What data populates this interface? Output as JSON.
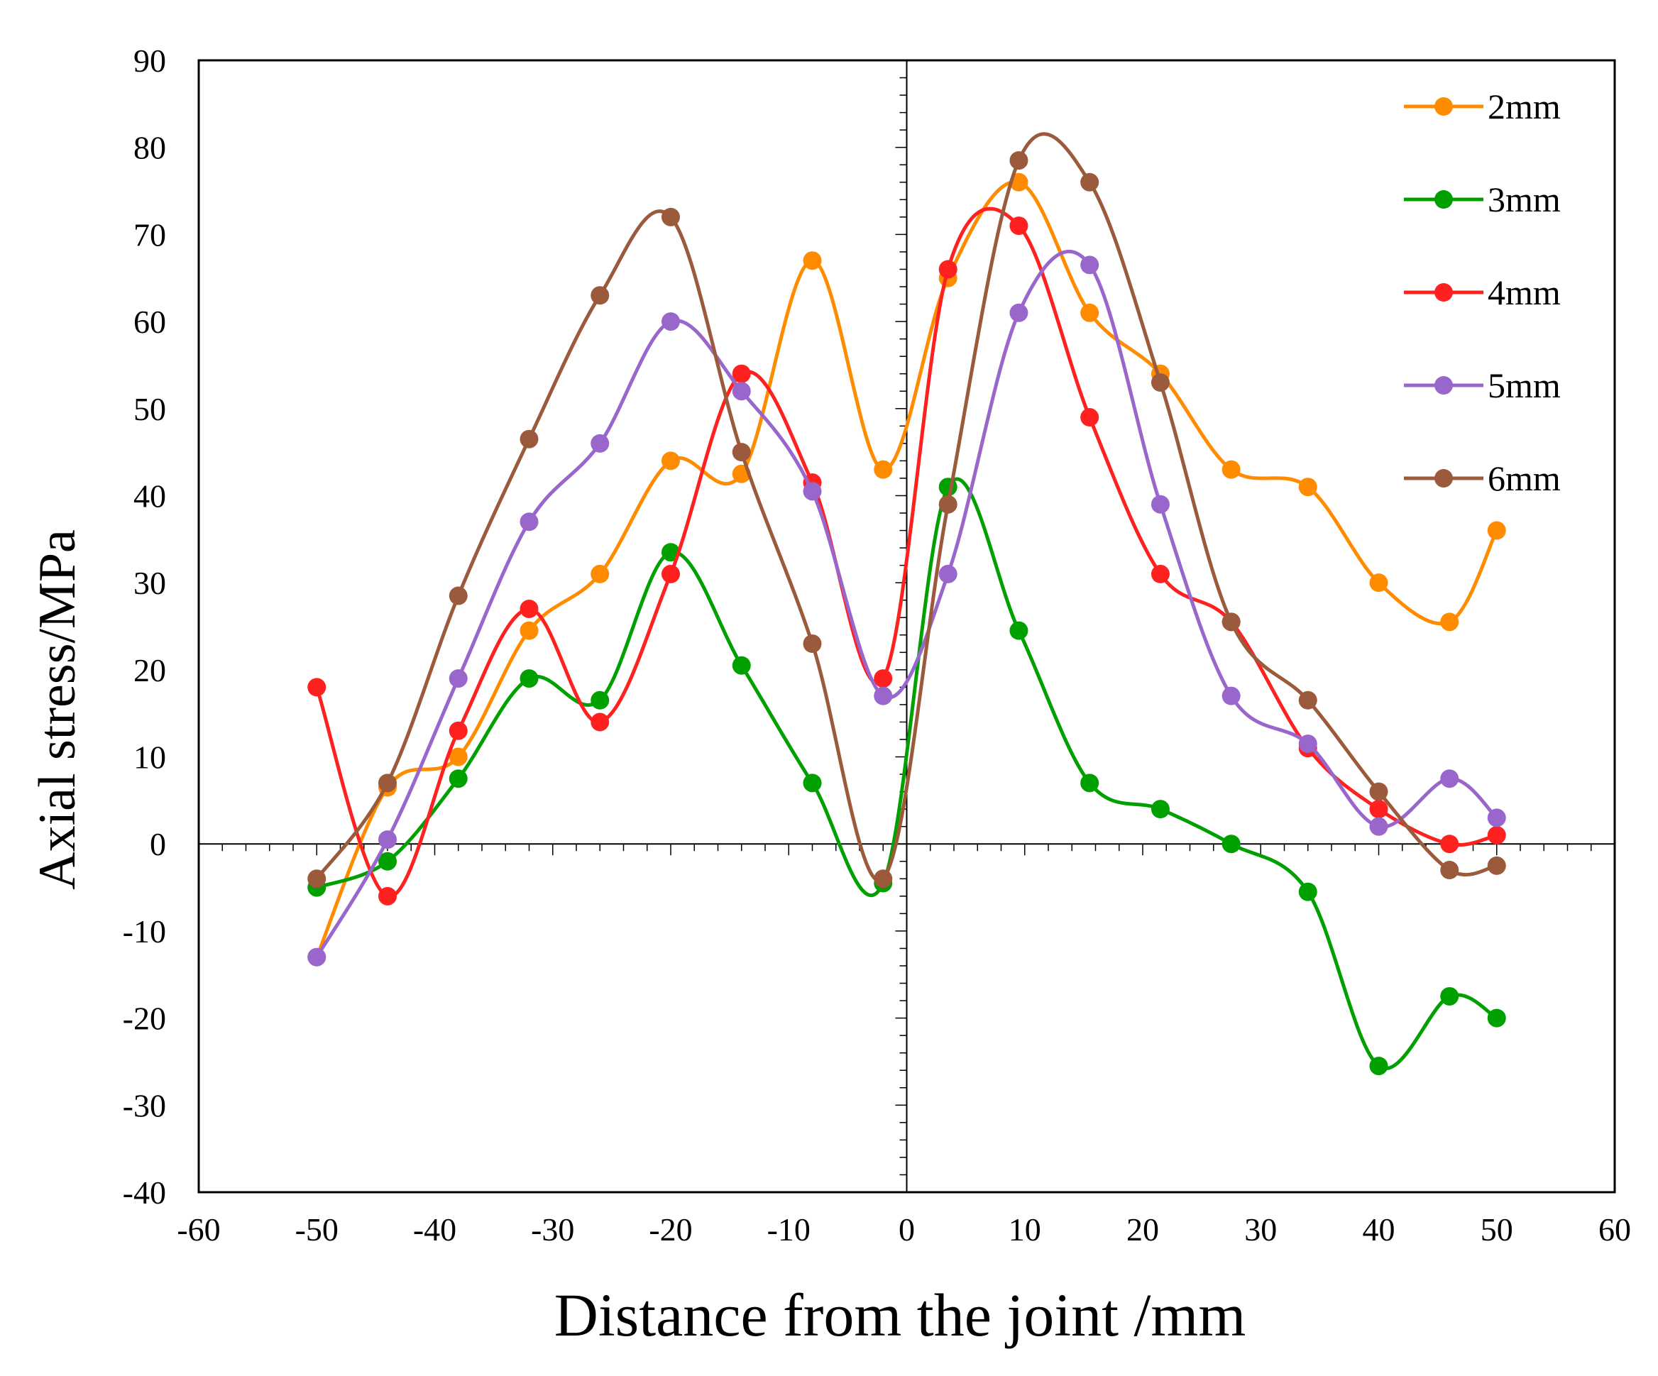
{
  "chart_data": {
    "type": "line",
    "title": "",
    "xlabel": "Distance from the joint /mm",
    "ylabel": "Axial stress/MPa",
    "xlim": [
      -60,
      60
    ],
    "ylim": [
      -40,
      90
    ],
    "x_ticks": [
      -60,
      -50,
      -40,
      -30,
      -20,
      -10,
      0,
      10,
      20,
      30,
      40,
      50,
      60
    ],
    "y_ticks": [
      -40,
      -30,
      -20,
      -10,
      0,
      10,
      20,
      30,
      40,
      50,
      60,
      70,
      80,
      90
    ],
    "legend_position": "top-right",
    "smooth": true,
    "series": [
      {
        "name": "2mm",
        "color": "#FF8C00",
        "x": [
          -50,
          -44,
          -38,
          -32,
          -26,
          -20,
          -14,
          -8,
          -2,
          3.5,
          9.5,
          15.5,
          21.5,
          27.5,
          34,
          40,
          46,
          50
        ],
        "y": [
          -13,
          6.5,
          10,
          24.5,
          31,
          44,
          42.5,
          67,
          43,
          65,
          76,
          61,
          54,
          43,
          41,
          30,
          25.5,
          36
        ]
      },
      {
        "name": "3mm",
        "color": "#00A000",
        "x": [
          -50,
          -44,
          -38,
          -32,
          -26,
          -20,
          -14,
          -8,
          -2,
          3.5,
          9.5,
          15.5,
          21.5,
          27.5,
          34,
          40,
          46,
          50
        ],
        "y": [
          -5,
          -2,
          7.5,
          19,
          16.5,
          33.5,
          20.5,
          7,
          -4.5,
          41,
          24.5,
          7,
          4,
          0,
          -5.5,
          -25.5,
          -17.5,
          -20
        ]
      },
      {
        "name": "4mm",
        "color": "#FF2020",
        "x": [
          -50,
          -44,
          -38,
          -32,
          -26,
          -20,
          -14,
          -8,
          -2,
          3.5,
          9.5,
          15.5,
          21.5,
          27.5,
          34,
          40,
          46,
          50
        ],
        "y": [
          18,
          -6,
          13,
          27,
          14,
          31,
          54,
          41.5,
          19,
          66,
          71,
          49,
          31,
          25.5,
          11,
          4,
          0,
          1
        ]
      },
      {
        "name": "5mm",
        "color": "#9966CC",
        "x": [
          -50,
          -44,
          -38,
          -32,
          -26,
          -20,
          -14,
          -8,
          -2,
          3.5,
          9.5,
          15.5,
          21.5,
          27.5,
          34,
          40,
          46,
          50
        ],
        "y": [
          -13,
          0.5,
          19,
          37,
          46,
          60,
          52,
          40.5,
          17,
          31,
          61,
          66.5,
          39,
          17,
          11.5,
          2,
          7.5,
          3
        ]
      },
      {
        "name": "6mm",
        "color": "#9B5A3C",
        "x": [
          -50,
          -44,
          -38,
          -32,
          -26,
          -20,
          -14,
          -8,
          -2,
          3.5,
          9.5,
          15.5,
          21.5,
          27.5,
          34,
          40,
          46,
          50
        ],
        "y": [
          -4,
          7,
          28.5,
          46.5,
          63,
          72,
          45,
          23,
          -4,
          39,
          78.5,
          76,
          53,
          25.5,
          16.5,
          6,
          -3,
          -2.5
        ]
      }
    ]
  }
}
